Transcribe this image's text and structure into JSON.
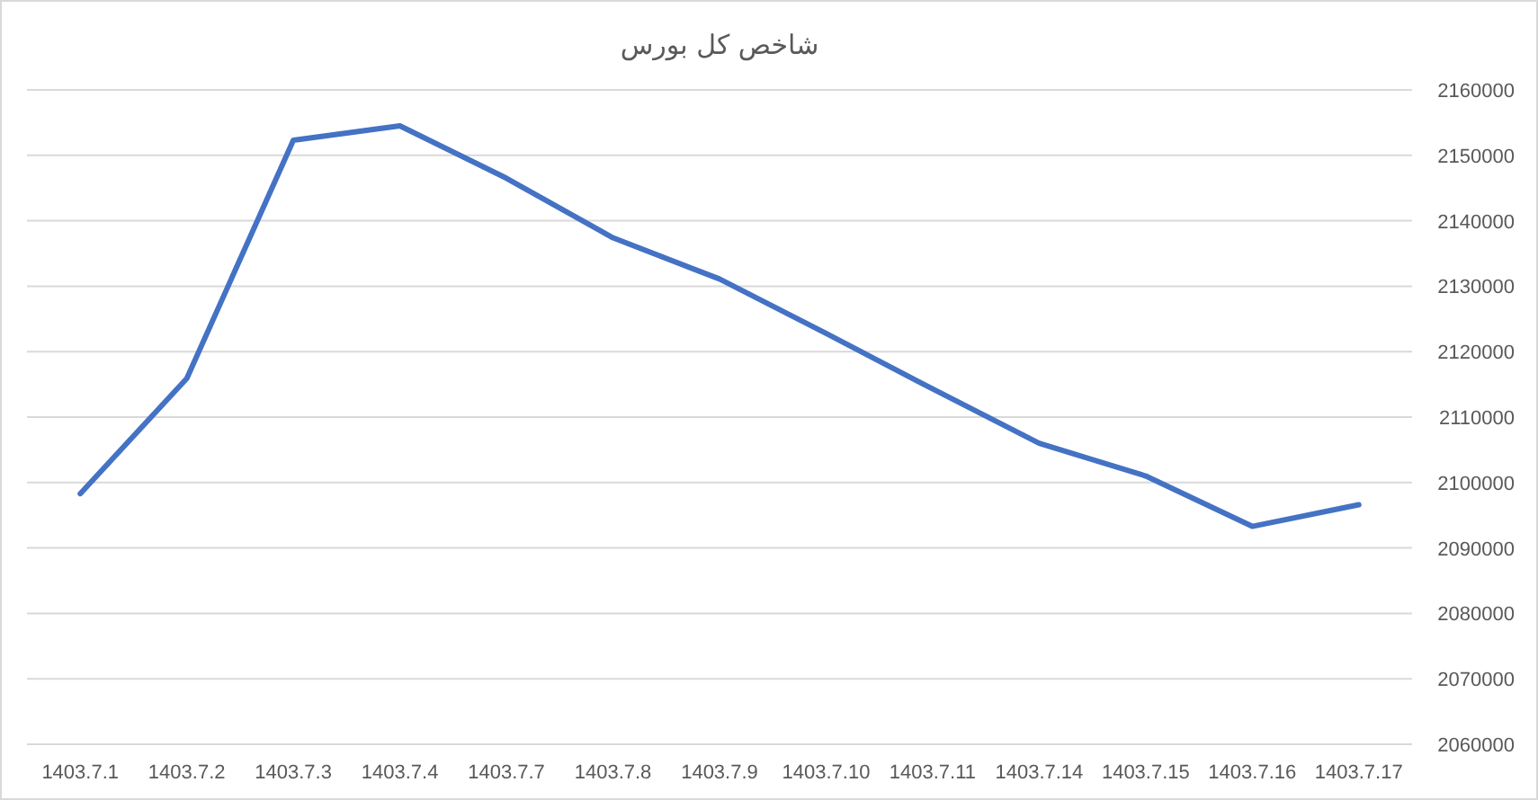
{
  "chart_data": {
    "type": "line",
    "title": "شاخص کل بورس",
    "categories": [
      "1403.7.1",
      "1403.7.2",
      "1403.7.3",
      "1403.7.4",
      "1403.7.7",
      "1403.7.8",
      "1403.7.9",
      "1403.7.10",
      "1403.7.11",
      "1403.7.14",
      "1403.7.15",
      "1403.7.16",
      "1403.7.17"
    ],
    "values": [
      2098300,
      2115900,
      2152300,
      2154500,
      2146500,
      2137400,
      2131100,
      2122800,
      2114300,
      2106000,
      2101000,
      2093300,
      2096600
    ],
    "color": "#4472c4",
    "ylim": [
      2060000,
      2160000
    ],
    "yticks": [
      2060000,
      2070000,
      2080000,
      2090000,
      2100000,
      2110000,
      2120000,
      2130000,
      2140000,
      2150000,
      2160000
    ],
    "grid": "y",
    "legend": false,
    "marker": "none",
    "line_style": "solid"
  }
}
